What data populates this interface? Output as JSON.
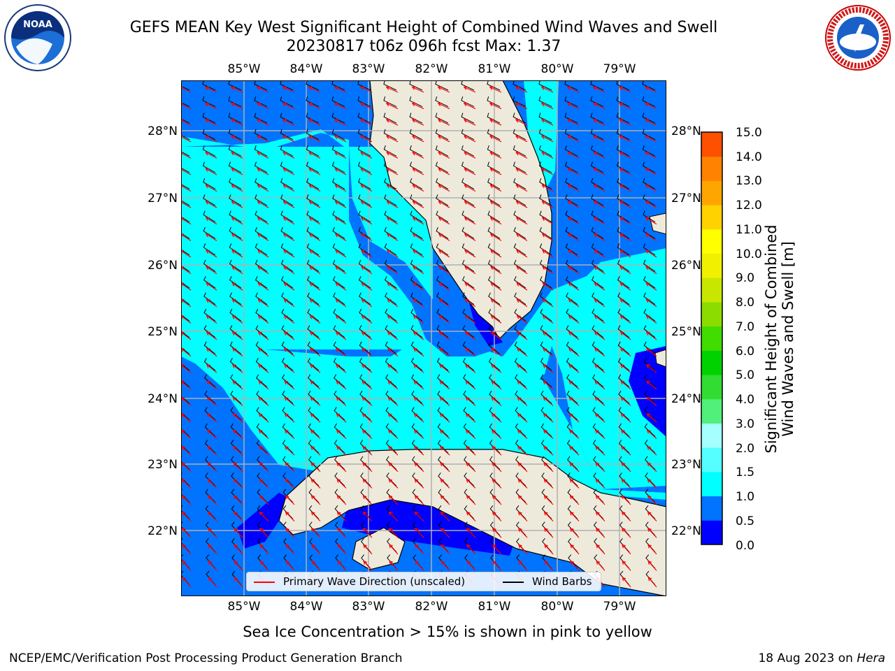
{
  "title_line1": "GEFS MEAN Key West Significant Height of Combined Wind Waves and Swell",
  "title_line2": "20230817 t06z 096h fcst   Max: 1.37",
  "logos": {
    "left": "NOAA",
    "right": "NATIONAL WEATHER SERVICE"
  },
  "lon_labels": [
    "85°W",
    "84°W",
    "83°W",
    "82°W",
    "81°W",
    "80°W",
    "79°W"
  ],
  "lat_labels": [
    "28°N",
    "27°N",
    "26°N",
    "25°N",
    "24°N",
    "23°N",
    "22°N"
  ],
  "colorbar": {
    "label_line1": "Significant Height of Combined",
    "label_line2": "Wind Waves and Swell [m]",
    "ticks": [
      "15.0",
      "14.0",
      "13.0",
      "12.0",
      "11.0",
      "10.0",
      "9.0",
      "8.0",
      "7.0",
      "6.0",
      "5.0",
      "4.0",
      "3.0",
      "2.0",
      "1.5",
      "1.0",
      "0.5",
      "0.0"
    ],
    "colors": [
      "#0000ff",
      "#0073ff",
      "#00ffff",
      "#55ffff",
      "#a5ffff",
      "#50f07a",
      "#32dc32",
      "#00d200",
      "#41dc00",
      "#8cdc00",
      "#c8e600",
      "#f0f000",
      "#ffff00",
      "#ffd200",
      "#ffa500",
      "#ff8200",
      "#ff5000",
      "#ff2800",
      "#ff0000"
    ]
  },
  "legend": {
    "wave_label": "Primary Wave Direction (unscaled)",
    "wave_color": "#ff0000",
    "barb_label": "Wind Barbs",
    "barb_color": "#000000"
  },
  "subtitle": "Sea Ice Concentration > 15% is shown in pink to yellow",
  "footer_left": "NCEP/EMC/Verification Post Processing Product Generation Branch",
  "footer_right_prefix": "18 Aug 2023 on ",
  "footer_right_host": "Hera",
  "map_colors": {
    "land": "#eeeadb",
    "gray_grid": "#b0b0b0"
  }
}
